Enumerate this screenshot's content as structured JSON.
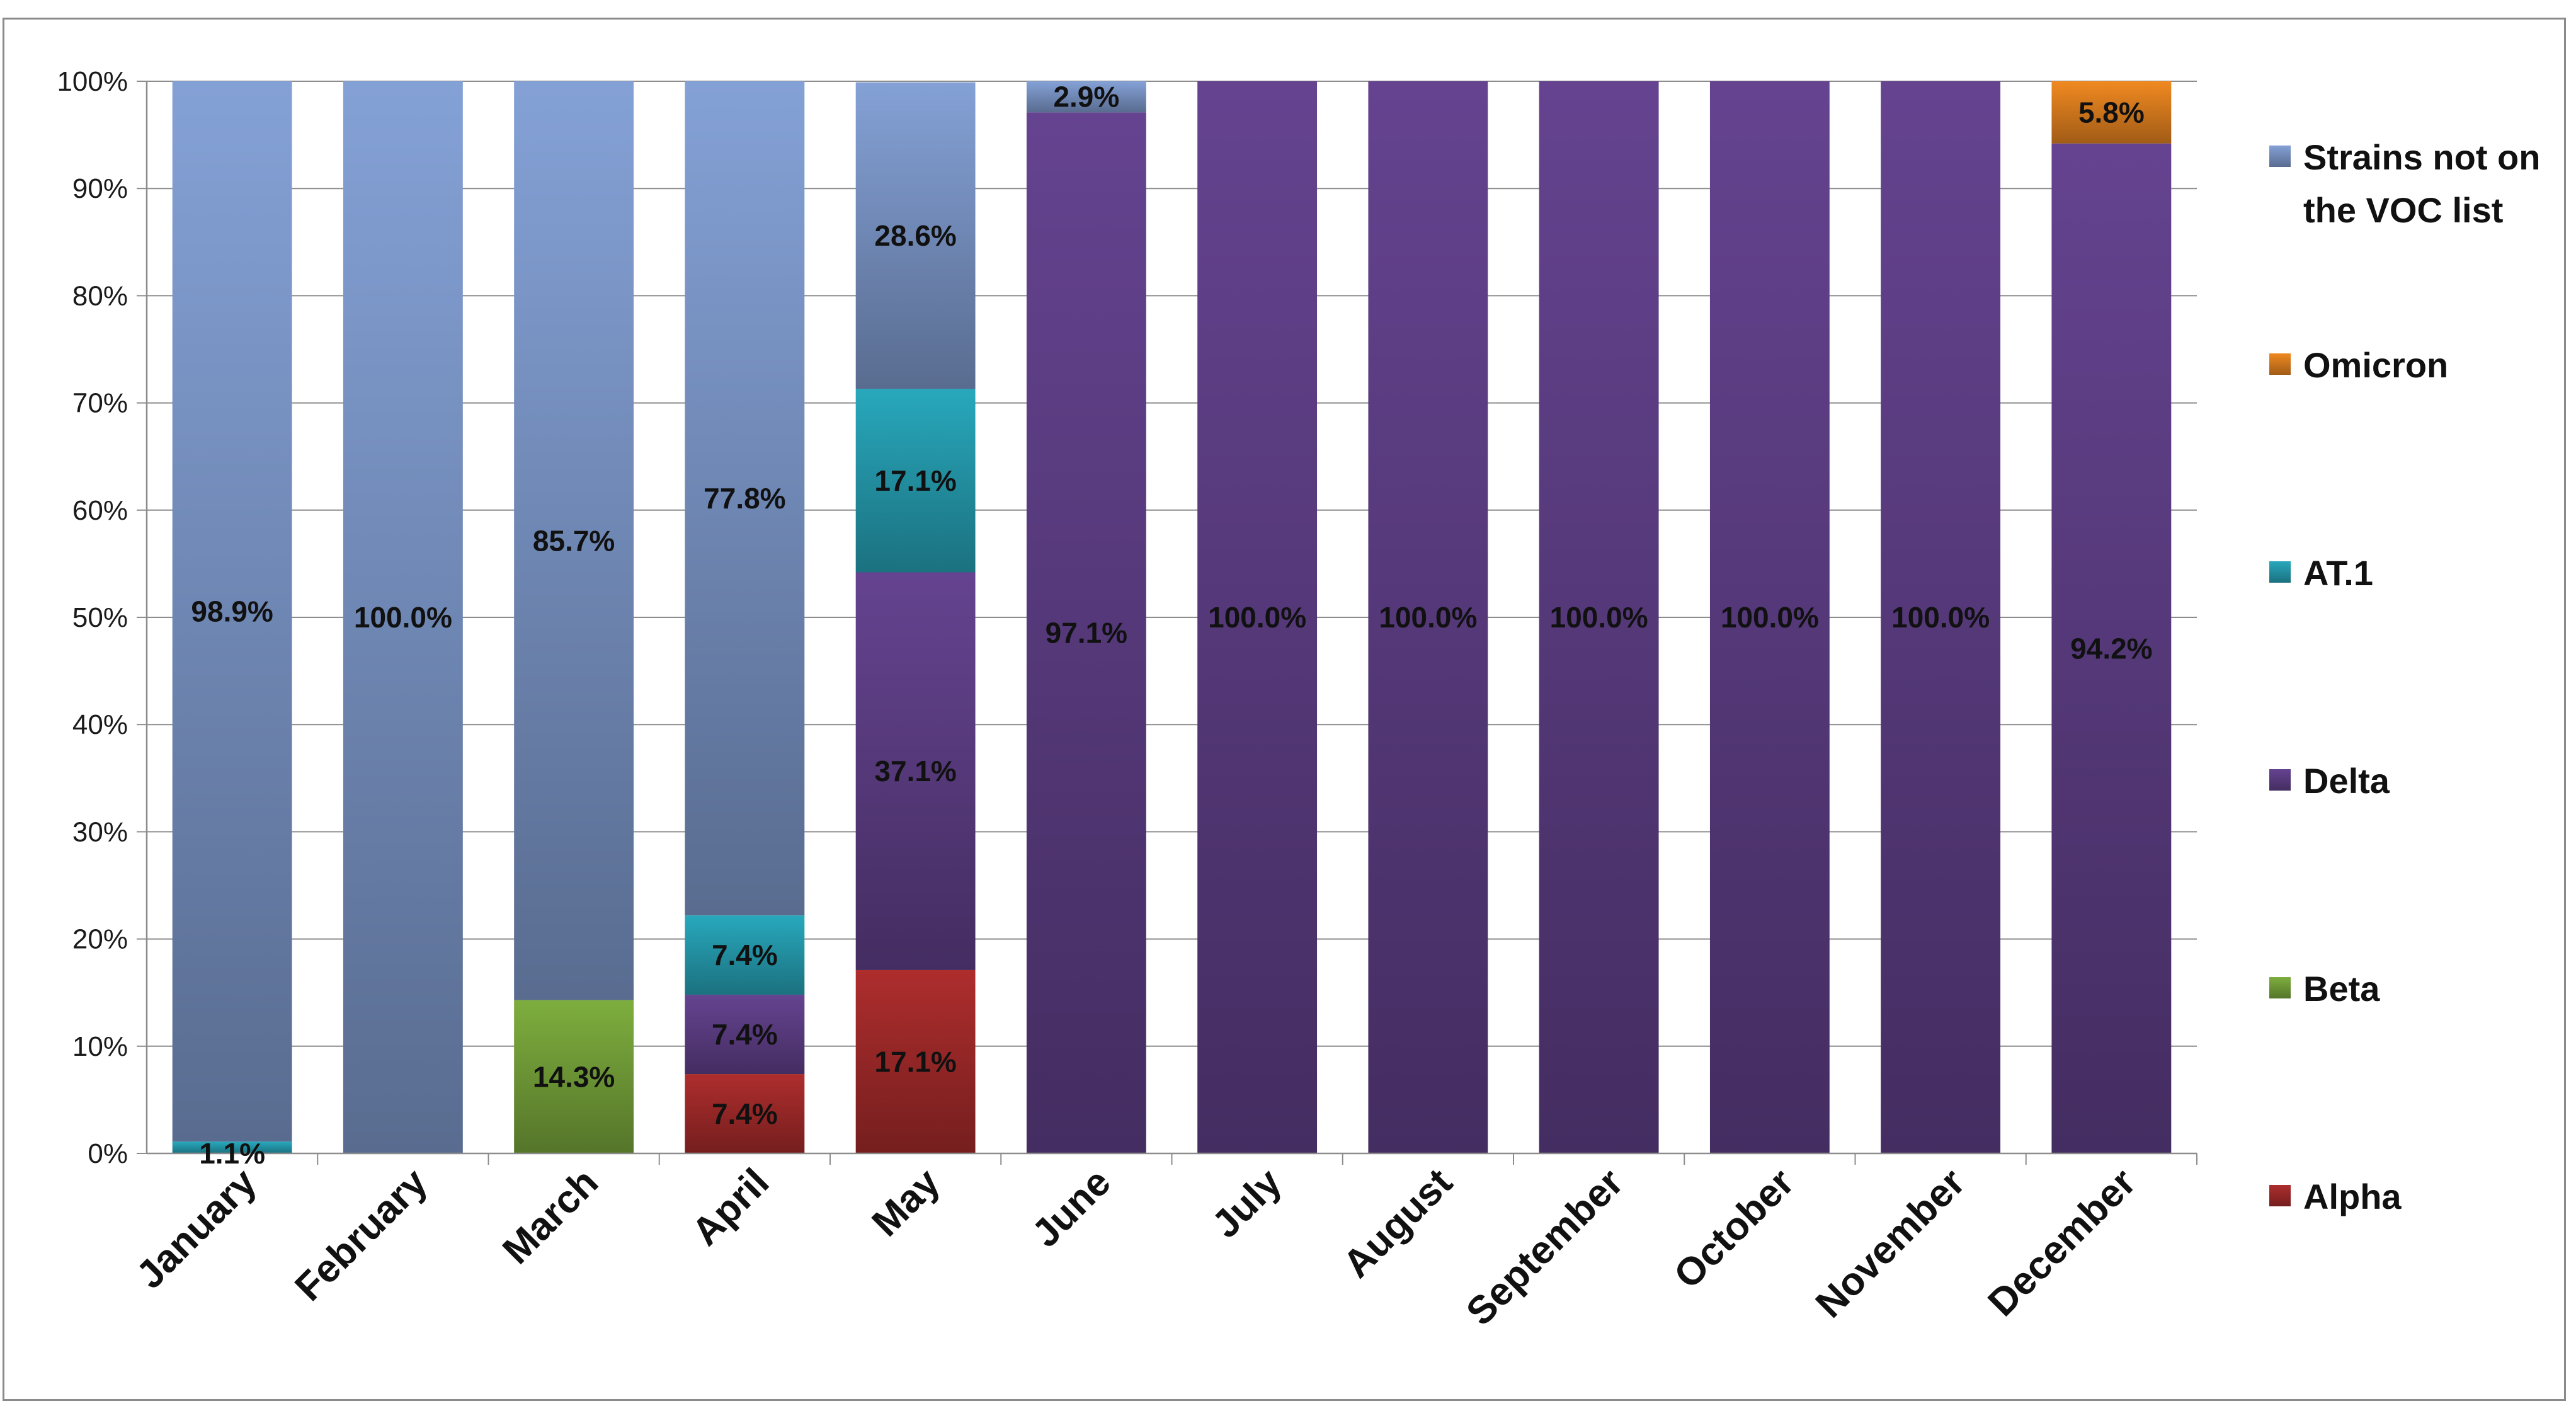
{
  "chart_data": {
    "type": "bar",
    "stacked": true,
    "percent_stacked": true,
    "categories": [
      "January",
      "February",
      "March",
      "April",
      "May",
      "June",
      "July",
      "August",
      "September",
      "October",
      "November",
      "December"
    ],
    "ylim": [
      0,
      100
    ],
    "y_ticks": [
      "0%",
      "10%",
      "20%",
      "30%",
      "40%",
      "50%",
      "60%",
      "70%",
      "80%",
      "90%",
      "100%"
    ],
    "grid": true,
    "legend_position": "right",
    "series": [
      {
        "name": "Alpha",
        "color": "#a32a2a",
        "values": [
          0,
          0,
          0,
          7.4,
          17.1,
          0,
          0,
          0,
          0,
          0,
          0,
          0
        ],
        "labels": [
          "",
          "",
          "",
          "7.4%",
          "17.1%",
          "",
          "",
          "",
          "",
          "",
          "",
          ""
        ]
      },
      {
        "name": "Beta",
        "color": "#76a33a",
        "values": [
          0,
          0,
          14.3,
          0,
          0,
          0,
          0,
          0,
          0,
          0,
          0,
          0
        ],
        "labels": [
          "",
          "",
          "14.3%",
          "",
          "",
          "",
          "",
          "",
          "",
          "",
          "",
          ""
        ]
      },
      {
        "name": "Delta",
        "color": "#5e3f87",
        "values": [
          0,
          0,
          0,
          7.4,
          37.1,
          97.1,
          100,
          100,
          100,
          100,
          100,
          94.2
        ],
        "labels": [
          "",
          "",
          "",
          "7.4%",
          "37.1%",
          "97.1%",
          "100.0%",
          "100.0%",
          "100.0%",
          "100.0%",
          "100.0%",
          "94.2%"
        ]
      },
      {
        "name": "AT.1",
        "color": "#259db0",
        "values": [
          1.1,
          0,
          0,
          7.4,
          17.1,
          0,
          0,
          0,
          0,
          0,
          0,
          0
        ],
        "labels": [
          "1.1%",
          "",
          "",
          "7.4%",
          "17.1%",
          "",
          "",
          "",
          "",
          "",
          "",
          ""
        ]
      },
      {
        "name": "Omicron",
        "color": "#e0801f",
        "values": [
          0,
          0,
          0,
          0,
          0,
          0,
          0,
          0,
          0,
          0,
          0,
          5.8
        ],
        "labels": [
          "",
          "",
          "",
          "",
          "",
          "",
          "",
          "",
          "",
          "",
          "",
          "5.8%"
        ]
      },
      {
        "name": "Strains not on the VOC list",
        "color": "#7b96c8",
        "values": [
          98.9,
          100,
          85.7,
          77.8,
          28.6,
          2.9,
          0,
          0,
          0,
          0,
          0,
          0
        ],
        "labels": [
          "98.9%",
          "100.0%",
          "85.7%",
          "77.8%",
          "28.6%",
          "2.9%",
          "",
          "",
          "",
          "",
          "",
          ""
        ]
      }
    ],
    "legend": [
      {
        "lines": [
          "Strains not on",
          "the VOC list"
        ],
        "color": "#7b96c8"
      },
      {
        "lines": [
          "Omicron"
        ],
        "color": "#e0801f"
      },
      {
        "lines": [
          "AT.1"
        ],
        "color": "#259db0"
      },
      {
        "lines": [
          "Delta"
        ],
        "color": "#5e3f87"
      },
      {
        "lines": [
          "Beta"
        ],
        "color": "#76a33a"
      },
      {
        "lines": [
          "Alpha"
        ],
        "color": "#a32a2a"
      }
    ]
  }
}
